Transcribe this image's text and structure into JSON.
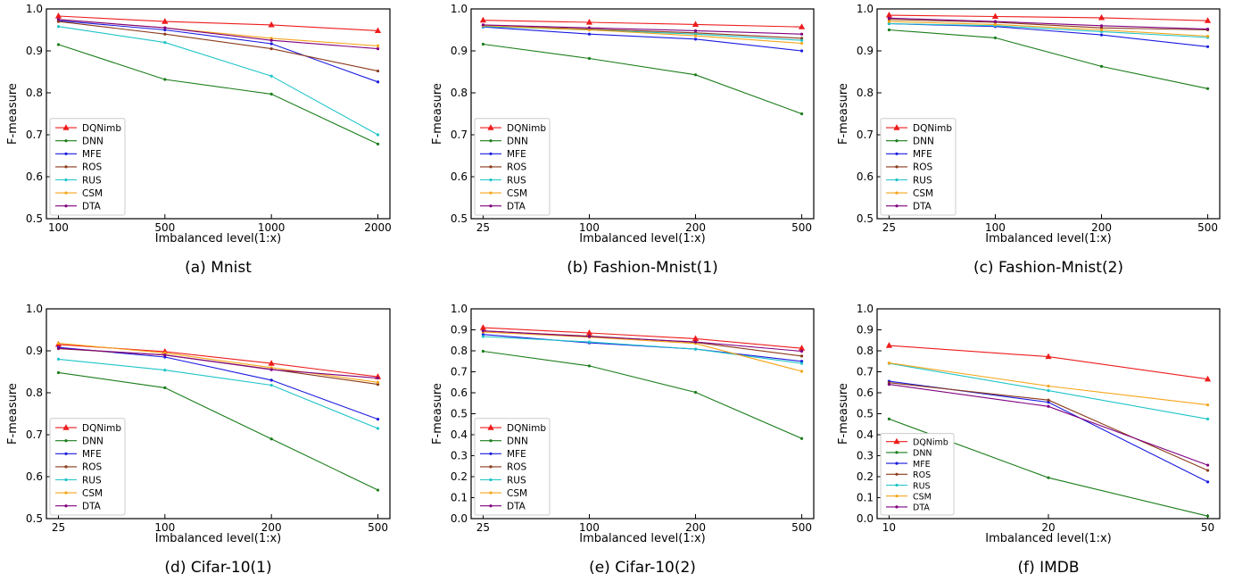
{
  "colors": {
    "DQNimb": "#ee1c1c",
    "DNN": "#1a7d1a",
    "MFE": "#1a1ae0",
    "ROS": "#8b3a1a",
    "RUS": "#1fc4c8",
    "CSM": "#f5a51a",
    "DTA": "#800080"
  },
  "chart_data": [
    {
      "type": "line",
      "caption": "(a) Mnist",
      "xlabel": "Imbalanced level(1:x)",
      "ylabel": "F-measure",
      "categories": [
        "100",
        "500",
        "1000",
        "2000"
      ],
      "ylim": [
        0.5,
        1.0
      ],
      "yticks": [
        "0.5",
        "0.6",
        "0.7",
        "0.8",
        "0.9",
        "1.0"
      ],
      "legend_position": "lower-left",
      "series": [
        {
          "name": "DQNimb",
          "values": [
            0.983,
            0.97,
            0.962,
            0.948
          ]
        },
        {
          "name": "DNN",
          "values": [
            0.915,
            0.832,
            0.797,
            0.678
          ]
        },
        {
          "name": "MFE",
          "values": [
            0.972,
            0.95,
            0.917,
            0.826
          ]
        },
        {
          "name": "ROS",
          "values": [
            0.97,
            0.94,
            0.905,
            0.852
          ]
        },
        {
          "name": "RUS",
          "values": [
            0.958,
            0.92,
            0.84,
            0.7
          ]
        },
        {
          "name": "CSM",
          "values": [
            0.975,
            0.955,
            0.93,
            0.912
          ]
        },
        {
          "name": "DTA",
          "values": [
            0.975,
            0.955,
            0.925,
            0.905
          ]
        }
      ]
    },
    {
      "type": "line",
      "caption": "(b) Fashion-Mnist(1)",
      "xlabel": "Imbalanced level(1:x)",
      "ylabel": "F-measure",
      "categories": [
        "25",
        "100",
        "200",
        "500"
      ],
      "ylim": [
        0.5,
        1.0
      ],
      "yticks": [
        "0.5",
        "0.6",
        "0.7",
        "0.8",
        "0.9",
        "1.0"
      ],
      "legend_position": "lower-left",
      "series": [
        {
          "name": "DQNimb",
          "values": [
            0.973,
            0.968,
            0.963,
            0.957
          ]
        },
        {
          "name": "DNN",
          "values": [
            0.916,
            0.882,
            0.843,
            0.75
          ]
        },
        {
          "name": "MFE",
          "values": [
            0.957,
            0.94,
            0.928,
            0.9
          ]
        },
        {
          "name": "ROS",
          "values": [
            0.96,
            0.952,
            0.943,
            0.93
          ]
        },
        {
          "name": "RUS",
          "values": [
            0.958,
            0.95,
            0.94,
            0.925
          ]
        },
        {
          "name": "CSM",
          "values": [
            0.96,
            0.95,
            0.936,
            0.918
          ]
        },
        {
          "name": "DTA",
          "values": [
            0.962,
            0.955,
            0.948,
            0.94
          ]
        }
      ]
    },
    {
      "type": "line",
      "caption": "(c) Fashion-Mnist(2)",
      "xlabel": "Imbalanced level(1:x)",
      "ylabel": "F-measure",
      "categories": [
        "25",
        "100",
        "200",
        "500"
      ],
      "ylim": [
        0.5,
        1.0
      ],
      "yticks": [
        "0.5",
        "0.6",
        "0.7",
        "0.8",
        "0.9",
        "1.0"
      ],
      "legend_position": "lower-left",
      "series": [
        {
          "name": "DQNimb",
          "values": [
            0.985,
            0.982,
            0.979,
            0.972
          ]
        },
        {
          "name": "DNN",
          "values": [
            0.95,
            0.931,
            0.863,
            0.81
          ]
        },
        {
          "name": "MFE",
          "values": [
            0.965,
            0.958,
            0.938,
            0.91
          ]
        },
        {
          "name": "ROS",
          "values": [
            0.975,
            0.968,
            0.955,
            0.95
          ]
        },
        {
          "name": "RUS",
          "values": [
            0.965,
            0.96,
            0.946,
            0.932
          ]
        },
        {
          "name": "CSM",
          "values": [
            0.97,
            0.963,
            0.95,
            0.935
          ]
        },
        {
          "name": "DTA",
          "values": [
            0.978,
            0.97,
            0.96,
            0.952
          ]
        }
      ]
    },
    {
      "type": "line",
      "caption": "(d) Cifar-10(1)",
      "xlabel": "Imbalanced level(1:x)",
      "ylabel": "F-measure",
      "categories": [
        "25",
        "100",
        "200",
        "500"
      ],
      "ylim": [
        0.5,
        1.0
      ],
      "yticks": [
        "0.5",
        "0.6",
        "0.7",
        "0.8",
        "0.9",
        "1.0"
      ],
      "legend_position": "lower-left",
      "series": [
        {
          "name": "DQNimb",
          "values": [
            0.915,
            0.898,
            0.87,
            0.838
          ]
        },
        {
          "name": "DNN",
          "values": [
            0.848,
            0.812,
            0.69,
            0.568
          ]
        },
        {
          "name": "MFE",
          "values": [
            0.908,
            0.885,
            0.83,
            0.737
          ]
        },
        {
          "name": "ROS",
          "values": [
            0.905,
            0.89,
            0.856,
            0.82
          ]
        },
        {
          "name": "RUS",
          "values": [
            0.88,
            0.854,
            0.818,
            0.715
          ]
        },
        {
          "name": "CSM",
          "values": [
            0.918,
            0.895,
            0.86,
            0.825
          ]
        },
        {
          "name": "DTA",
          "values": [
            0.906,
            0.89,
            0.855,
            0.835
          ]
        }
      ]
    },
    {
      "type": "line",
      "caption": "(e) Cifar-10(2)",
      "xlabel": "Imbalanced level(1:x)",
      "ylabel": "F-measure",
      "categories": [
        "25",
        "100",
        "200",
        "500"
      ],
      "ylim": [
        0.0,
        1.0
      ],
      "yticks": [
        "0.0",
        "0.1",
        "0.2",
        "0.3",
        "0.4",
        "0.5",
        "0.6",
        "0.7",
        "0.8",
        "0.9",
        "1.0"
      ],
      "legend_position": "lower-left",
      "series": [
        {
          "name": "DQNimb",
          "values": [
            0.91,
            0.885,
            0.858,
            0.812
          ]
        },
        {
          "name": "DNN",
          "values": [
            0.798,
            0.728,
            0.602,
            0.382
          ]
        },
        {
          "name": "MFE",
          "values": [
            0.878,
            0.838,
            0.808,
            0.75
          ]
        },
        {
          "name": "ROS",
          "values": [
            0.895,
            0.87,
            0.84,
            0.775
          ]
        },
        {
          "name": "RUS",
          "values": [
            0.868,
            0.842,
            0.808,
            0.74
          ]
        },
        {
          "name": "CSM",
          "values": [
            0.89,
            0.865,
            0.835,
            0.702
          ]
        },
        {
          "name": "DTA",
          "values": [
            0.895,
            0.868,
            0.842,
            0.798
          ]
        }
      ]
    },
    {
      "type": "line",
      "caption": "(f) IMDB",
      "xlabel": "Imbalanced level(1:x)",
      "ylabel": "F-measure",
      "categories": [
        "10",
        "20",
        "50"
      ],
      "ylim": [
        0.0,
        1.0
      ],
      "yticks": [
        "0.0",
        "0.1",
        "0.2",
        "0.3",
        "0.4",
        "0.5",
        "0.6",
        "0.7",
        "0.8",
        "0.9",
        "1.0"
      ],
      "legend_position": "lower-left",
      "series": [
        {
          "name": "DQNimb",
          "values": [
            0.825,
            0.772,
            0.665
          ]
        },
        {
          "name": "DNN",
          "values": [
            0.475,
            0.195,
            0.012
          ]
        },
        {
          "name": "MFE",
          "values": [
            0.655,
            0.555,
            0.175
          ]
        },
        {
          "name": "ROS",
          "values": [
            0.648,
            0.565,
            0.23
          ]
        },
        {
          "name": "RUS",
          "values": [
            0.74,
            0.61,
            0.475
          ]
        },
        {
          "name": "CSM",
          "values": [
            0.742,
            0.632,
            0.542
          ]
        },
        {
          "name": "DTA",
          "values": [
            0.64,
            0.535,
            0.255
          ]
        }
      ]
    }
  ]
}
